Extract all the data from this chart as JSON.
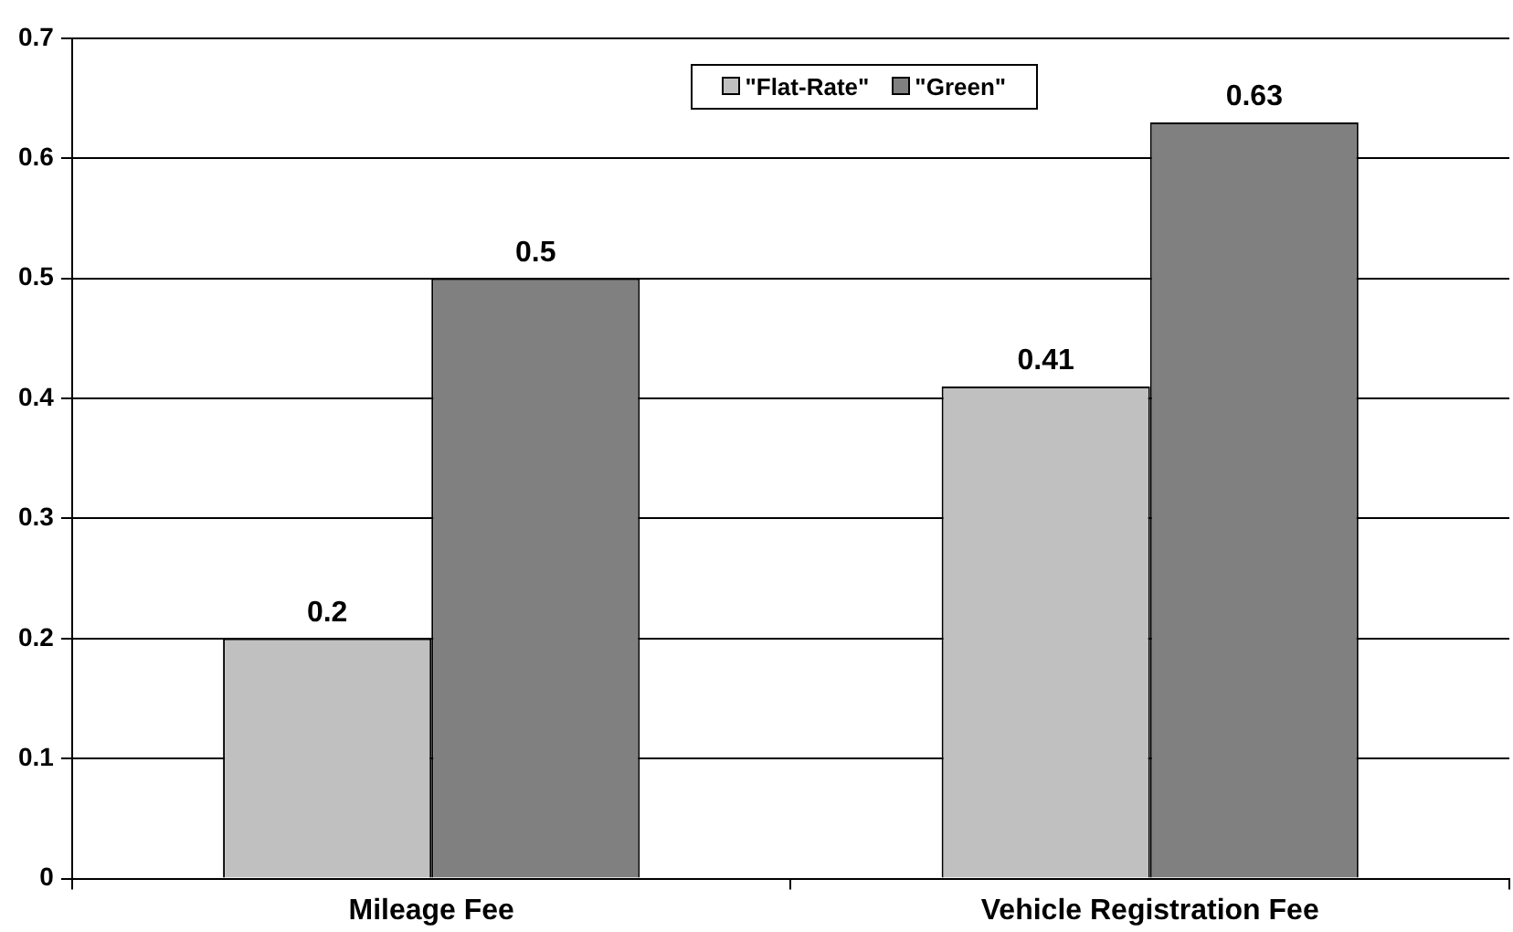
{
  "chart_data": {
    "type": "bar",
    "categories": [
      "Mileage Fee",
      "Vehicle Registration Fee"
    ],
    "series": [
      {
        "name": "\"Flat-Rate\"",
        "color": "#c0c0c0",
        "values": [
          0.2,
          0.41
        ]
      },
      {
        "name": "\"Green\"",
        "color": "#808080",
        "values": [
          0.5,
          0.63
        ]
      }
    ],
    "ylim": [
      0,
      0.7
    ],
    "yticks": [
      0,
      0.1,
      0.2,
      0.3,
      0.4,
      0.5,
      0.6,
      0.7
    ],
    "grid": "y",
    "legend": "top",
    "data_labels": true
  }
}
